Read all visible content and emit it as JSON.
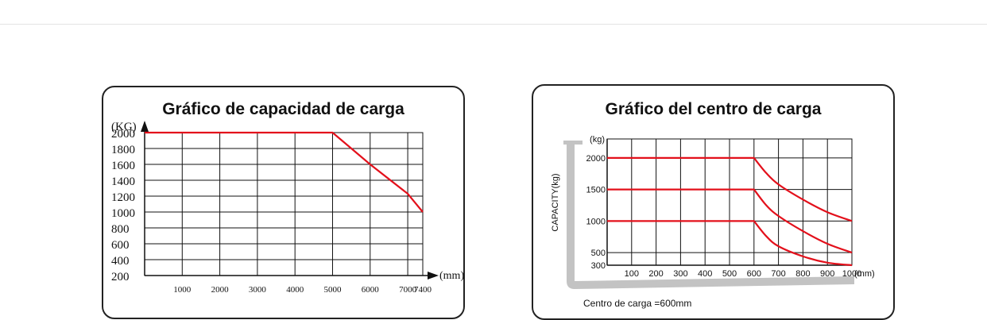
{
  "chart_data": [
    {
      "type": "line",
      "title": "Gráfico de capacidad de carga",
      "ylabel": "(KG)",
      "xlabel": "(mm)",
      "x_ticks": [
        1000,
        2000,
        3000,
        4000,
        5000,
        6000,
        7000,
        7400
      ],
      "x_tick_labels": [
        "1000",
        "2000",
        "3000",
        "4000",
        "5000",
        "6000",
        "7000",
        "7400"
      ],
      "y_ticks": [
        200,
        400,
        600,
        800,
        1000,
        1200,
        1400,
        1600,
        1800,
        2000
      ],
      "y_tick_labels": [
        "200",
        "400",
        "600",
        "800",
        "1000",
        "1200",
        "1400",
        "1600",
        "1800",
        "2000"
      ],
      "xlim": [
        0,
        7400
      ],
      "ylim": [
        200,
        2000
      ],
      "grid": true,
      "color": "#e3101b",
      "series": [
        {
          "x": [
            0,
            5000,
            6000,
            7000,
            7400
          ],
          "y": [
            2000,
            2000,
            1600,
            1230,
            1000
          ]
        }
      ]
    },
    {
      "type": "line",
      "title": "Gráfico del centro de carga",
      "ylabel": "CAPACITY(kg)",
      "yunit": "(kg)",
      "xlabel": "(mm)",
      "x_ticks": [
        100,
        200,
        300,
        400,
        500,
        600,
        700,
        800,
        900,
        1000
      ],
      "x_tick_labels": [
        "100",
        "200",
        "300",
        "400",
        "500",
        "600",
        "700",
        "800",
        "900",
        "1000"
      ],
      "y_ticks": [
        300,
        500,
        1000,
        1500,
        2000
      ],
      "y_tick_labels": [
        "300",
        "500",
        "1000",
        "1500",
        "2000"
      ],
      "xlim": [
        0,
        1000
      ],
      "ylim": [
        300,
        2300
      ],
      "grid": true,
      "color": "#e3101b",
      "footnote": "Centro de carga =600mm",
      "series": [
        {
          "x": [
            0,
            600,
            650,
            700,
            800,
            900,
            1000
          ],
          "y": [
            2000,
            2000,
            1760,
            1580,
            1340,
            1140,
            1000
          ]
        },
        {
          "x": [
            0,
            600,
            650,
            700,
            800,
            900,
            1000
          ],
          "y": [
            1500,
            1500,
            1250,
            1080,
            840,
            640,
            500
          ]
        },
        {
          "x": [
            0,
            600,
            650,
            700,
            800,
            900,
            1000
          ],
          "y": [
            1000,
            1000,
            760,
            600,
            440,
            340,
            300
          ]
        }
      ]
    }
  ]
}
